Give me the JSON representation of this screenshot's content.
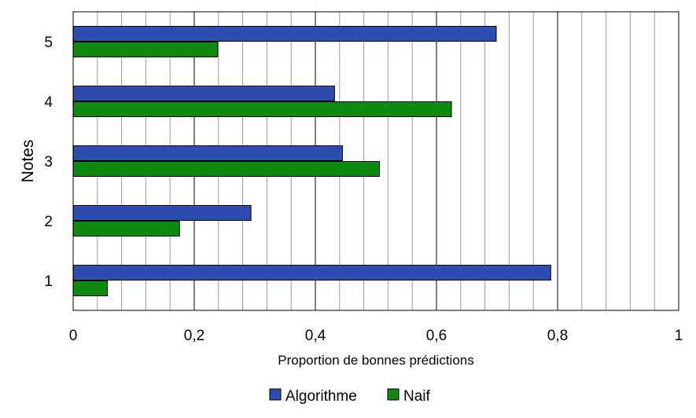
{
  "chart_data": {
    "type": "bar",
    "orientation": "horizontal",
    "title": "",
    "xlabel": "Proportion de bonnes prédictions",
    "ylabel": "Notes",
    "categories": [
      "1",
      "2",
      "3",
      "4",
      "5"
    ],
    "series": [
      {
        "name": "Algorithme",
        "color": "#2E4DB0",
        "values": [
          0.788,
          0.293,
          0.444,
          0.431,
          0.698
        ]
      },
      {
        "name": "Naif",
        "color": "#0E8A0E",
        "values": [
          0.056,
          0.175,
          0.505,
          0.624,
          0.238
        ]
      }
    ],
    "xlim": [
      0,
      1
    ],
    "x_ticks": [
      0,
      0.2,
      0.4,
      0.6,
      0.8,
      1
    ],
    "x_tick_labels": [
      "0",
      "0,2",
      "0,4",
      "0,6",
      "0,8",
      "1"
    ],
    "minor_grid_step": 0.04,
    "grid": true,
    "legend_position": "bottom"
  }
}
